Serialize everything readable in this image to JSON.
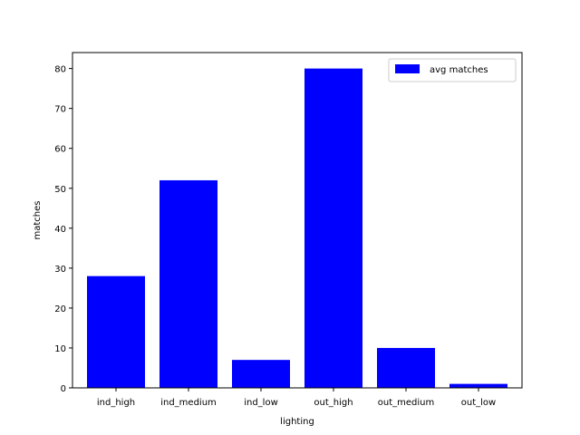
{
  "chart_data": {
    "type": "bar",
    "title": "",
    "xlabel": "lighting",
    "ylabel": "matches",
    "categories": [
      "ind_high",
      "ind_medium",
      "ind_low",
      "out_high",
      "out_medium",
      "out_low"
    ],
    "series": [
      {
        "name": "avg matches",
        "values": [
          28,
          52,
          7,
          80,
          10,
          1
        ],
        "color": "#0000ff"
      }
    ],
    "ylim": [
      0,
      84
    ],
    "yticks": [
      0,
      10,
      20,
      30,
      40,
      50,
      60,
      70,
      80
    ],
    "ytick_labels": [
      "0",
      "10",
      "20",
      "30",
      "40",
      "50",
      "60",
      "70",
      "80"
    ],
    "grid": false,
    "legend_position": "top-right"
  }
}
